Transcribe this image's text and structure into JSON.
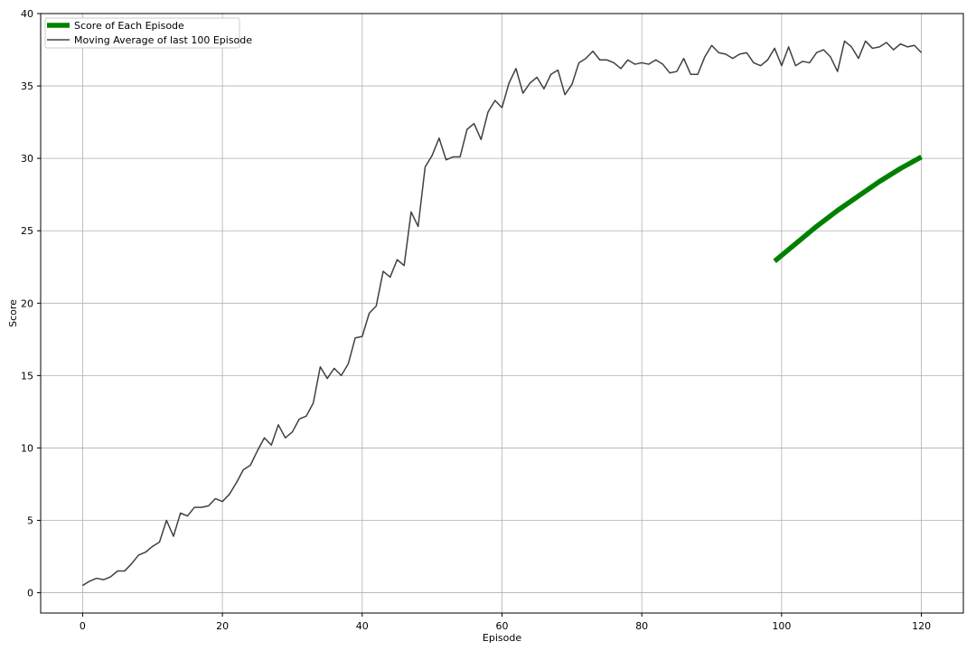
{
  "chart_data": {
    "type": "line",
    "title": "",
    "xlabel": "Episode",
    "ylabel": "Score",
    "xlim": [
      -6,
      126
    ],
    "ylim": [
      -1.4,
      40
    ],
    "x_ticks": [
      0,
      20,
      40,
      60,
      80,
      100,
      120
    ],
    "y_ticks": [
      0,
      5,
      10,
      15,
      20,
      25,
      30,
      35,
      40
    ],
    "grid": true,
    "legend_position": "top-left",
    "series": [
      {
        "name": "Score of Each Episode",
        "color": "#008000",
        "x": [
          99,
          102,
          105,
          108,
          111,
          114,
          117,
          120
        ],
        "y": [
          22.9,
          24.1,
          25.3,
          26.4,
          27.4,
          28.4,
          29.3,
          30.1
        ]
      },
      {
        "name": "Moving Average of last 100 Episode",
        "color": "#404040",
        "x": [
          0,
          1,
          2,
          3,
          4,
          5,
          6,
          7,
          8,
          9,
          10,
          11,
          12,
          13,
          14,
          15,
          16,
          17,
          18,
          19,
          20,
          21,
          22,
          23,
          24,
          25,
          26,
          27,
          28,
          29,
          30,
          31,
          32,
          33,
          34,
          35,
          36,
          37,
          38,
          39,
          40,
          41,
          42,
          43,
          44,
          45,
          46,
          47,
          48,
          49,
          50,
          51,
          52,
          53,
          54,
          55,
          56,
          57,
          58,
          59,
          60,
          61,
          62,
          63,
          64,
          65,
          66,
          67,
          68,
          69,
          70,
          71,
          72,
          73,
          74,
          75,
          76,
          77,
          78,
          79,
          80,
          81,
          82,
          83,
          84,
          85,
          86,
          87,
          88,
          89,
          90,
          91,
          92,
          93,
          94,
          95,
          96,
          97,
          98,
          99,
          100,
          101,
          102,
          103,
          104,
          105,
          106,
          107,
          108,
          109,
          110,
          111,
          112,
          113,
          114,
          115,
          116,
          117,
          118,
          119,
          120
        ],
        "y": [
          0.5,
          0.8,
          1.0,
          0.9,
          1.1,
          1.5,
          1.5,
          2.0,
          2.6,
          2.8,
          3.2,
          3.5,
          5.0,
          3.9,
          5.5,
          5.3,
          5.9,
          5.9,
          6.0,
          6.5,
          6.3,
          6.8,
          7.6,
          8.5,
          8.8,
          9.8,
          10.7,
          10.2,
          11.6,
          10.7,
          11.1,
          12.0,
          12.2,
          13.1,
          15.6,
          14.8,
          15.5,
          15.0,
          15.8,
          17.6,
          17.7,
          19.3,
          19.8,
          22.2,
          21.8,
          23.0,
          22.6,
          26.3,
          25.3,
          29.4,
          30.2,
          31.4,
          29.9,
          30.1,
          30.1,
          32.0,
          32.4,
          31.3,
          33.2,
          34.0,
          33.5,
          35.2,
          36.2,
          34.5,
          35.2,
          35.6,
          34.8,
          35.8,
          36.1,
          34.4,
          35.1,
          36.6,
          36.9,
          37.4,
          36.8,
          36.8,
          36.6,
          36.2,
          36.8,
          36.5,
          36.6,
          36.5,
          36.8,
          36.5,
          35.9,
          36.0,
          36.9,
          35.8,
          35.8,
          37.0,
          37.8,
          37.3,
          37.2,
          36.9,
          37.2,
          37.3,
          36.6,
          36.4,
          36.8,
          37.6,
          36.4,
          37.7,
          36.4,
          36.7,
          36.6,
          37.3,
          37.5,
          37.0,
          36.0,
          38.1,
          37.7,
          36.9,
          38.1,
          37.6,
          37.7,
          38.0,
          37.5,
          37.9,
          37.7,
          37.8,
          37.3
        ]
      }
    ]
  }
}
